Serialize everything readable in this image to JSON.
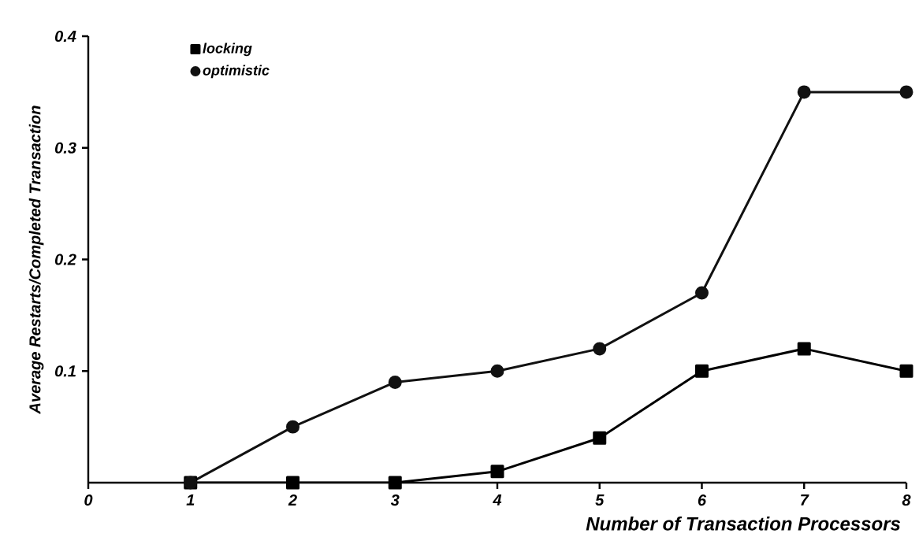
{
  "chart_data": {
    "type": "line",
    "xlabel": "Number of Transaction Processors",
    "ylabel": "Average Restarts/Completed Transaction",
    "x": [
      1,
      2,
      3,
      4,
      5,
      6,
      7,
      8
    ],
    "series": [
      {
        "name": "locking",
        "color": "#000000",
        "marker": "square",
        "values": [
          0,
          0,
          0,
          0.01,
          0.04,
          0.1,
          0.12,
          0.1
        ]
      },
      {
        "name": "optimistic",
        "color": "#111111",
        "marker": "circle",
        "values": [
          0,
          0.05,
          0.09,
          0.1,
          0.12,
          0.17,
          0.35,
          0.35
        ]
      }
    ],
    "xlim": [
      0,
      8
    ],
    "ylim": [
      0,
      0.4
    ],
    "xticks": [
      0,
      1,
      2,
      3,
      4,
      5,
      6,
      7,
      8
    ],
    "yticks": [
      0.1,
      0.2,
      0.3,
      0.4
    ],
    "legend": "top left",
    "grid": false,
    "line_style": "solid"
  }
}
